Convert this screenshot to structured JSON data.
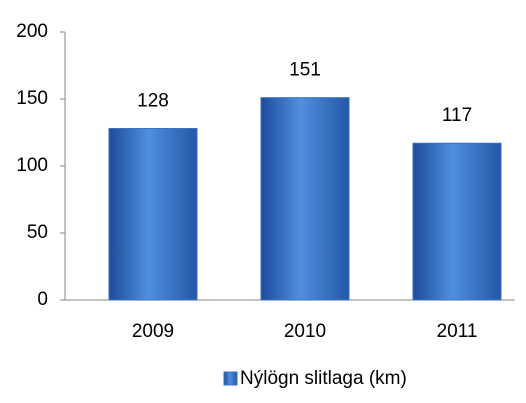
{
  "chart_data": {
    "type": "bar",
    "categories": [
      "2009",
      "2010",
      "2011"
    ],
    "series": [
      {
        "name": "Nýlögn slitlaga (km)",
        "color": "#3a72c4",
        "values": [
          128,
          151,
          117
        ]
      }
    ],
    "ylim": [
      0,
      200
    ],
    "yticks": [
      0,
      50,
      100,
      150,
      200
    ],
    "grid": false,
    "legend": "bottom"
  }
}
